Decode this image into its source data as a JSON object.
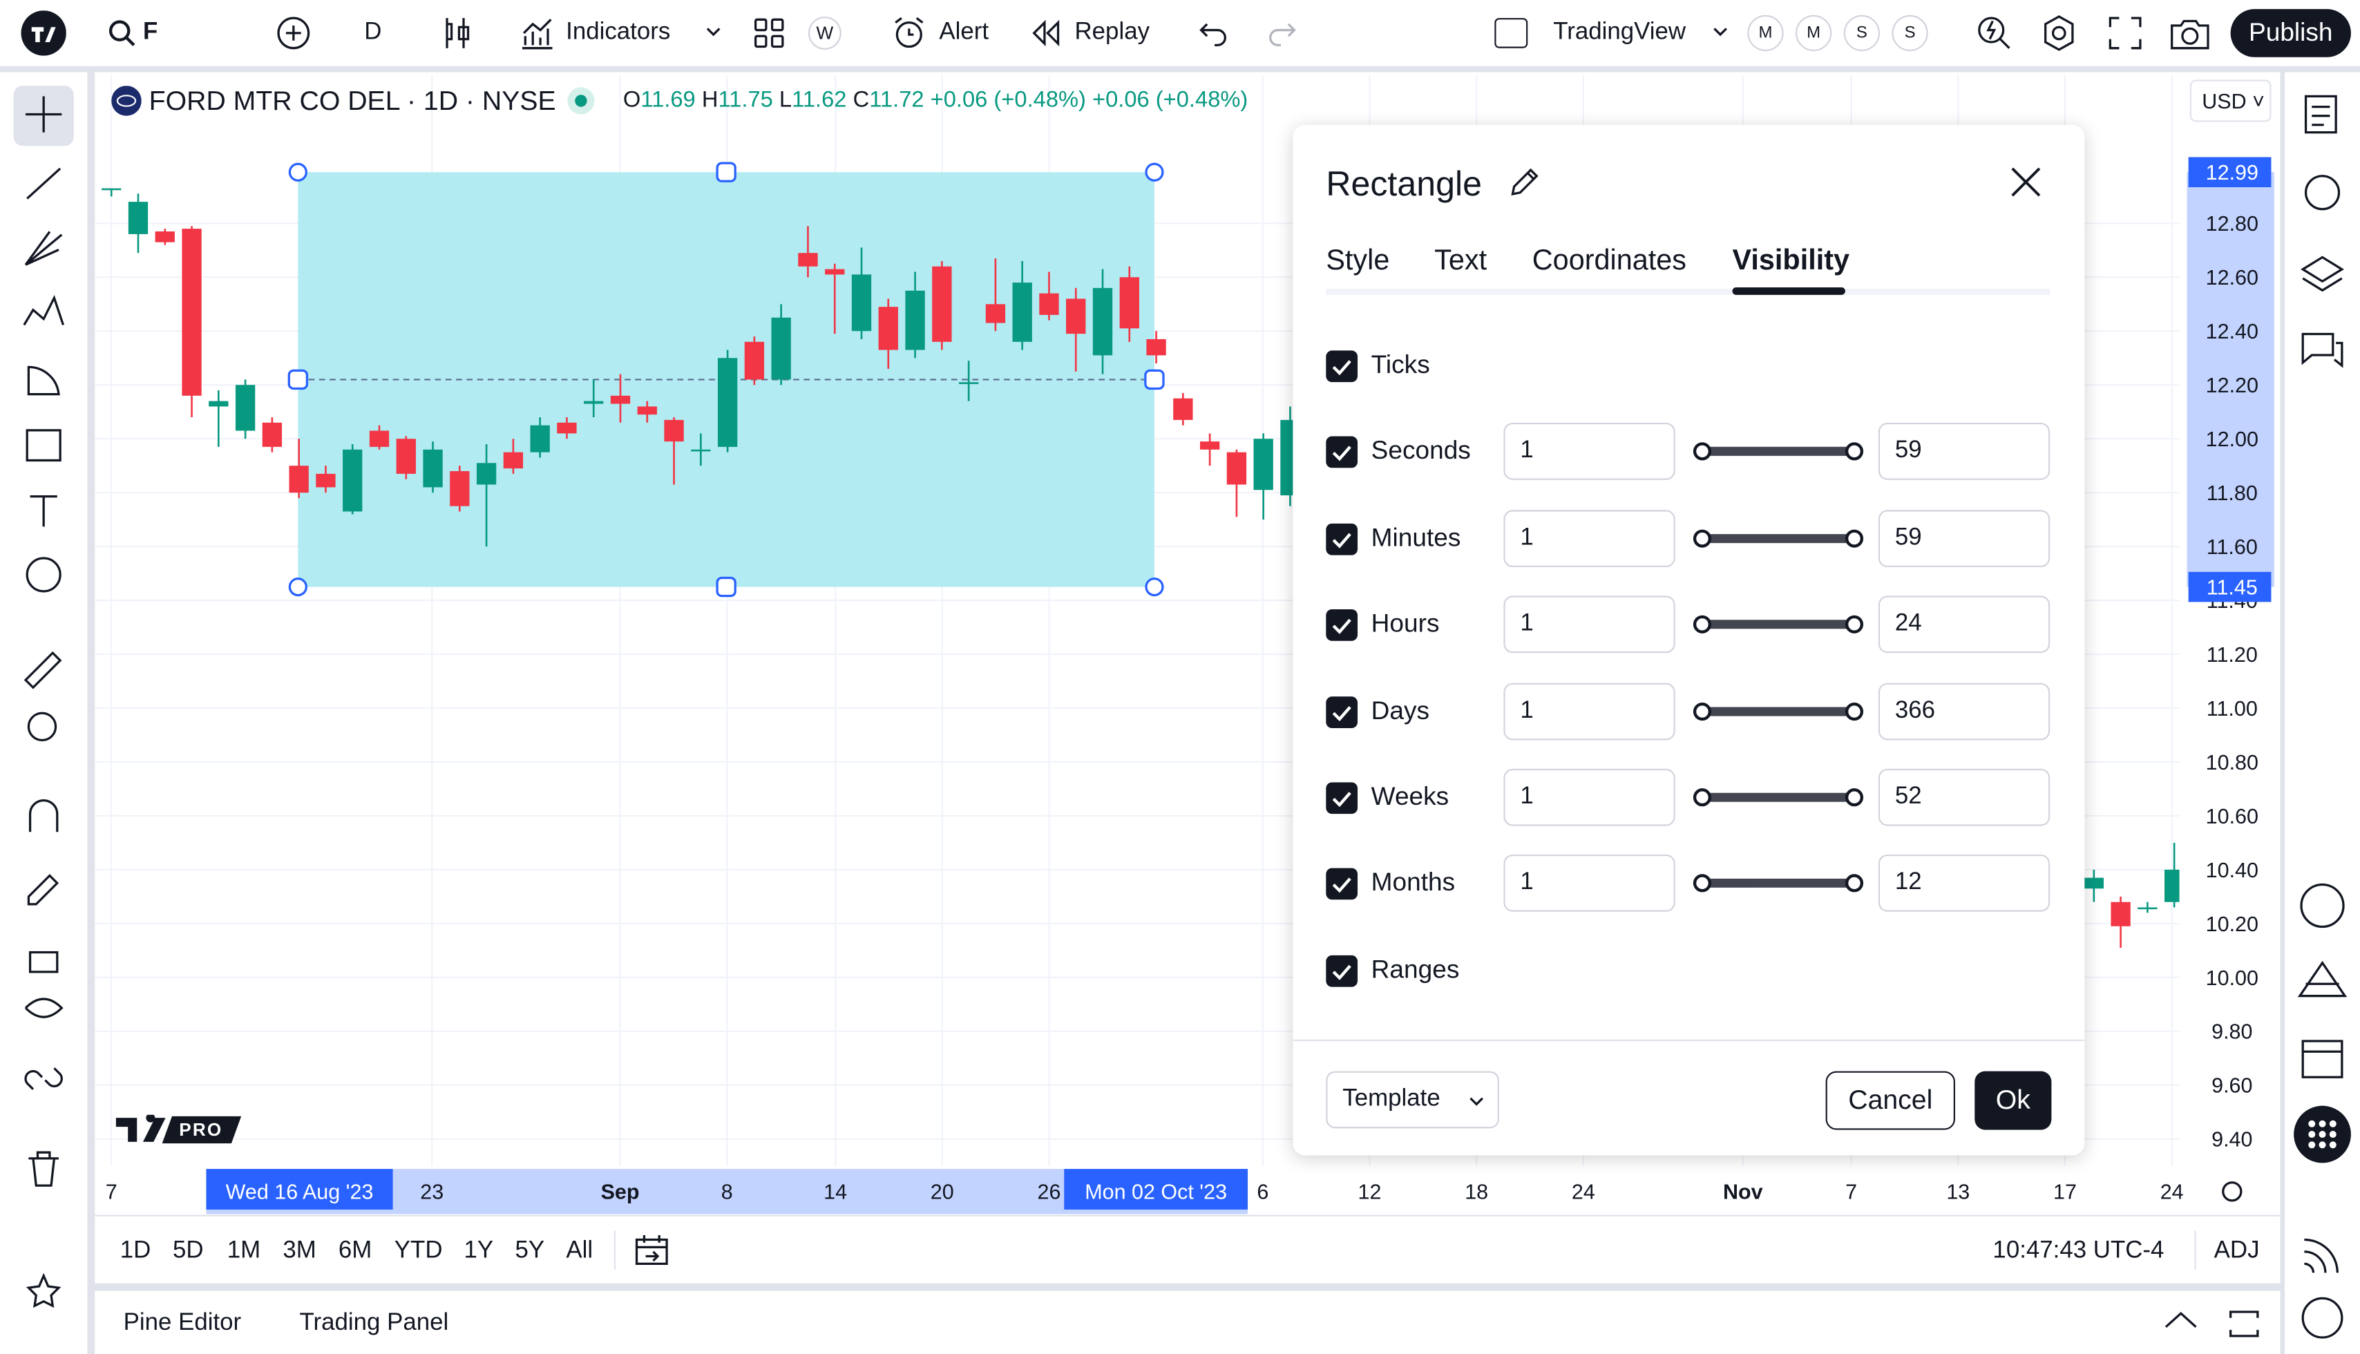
{
  "top_bar": {
    "symbol": "F",
    "interval": "D",
    "indicators": "Indicators",
    "compare": "W",
    "alert": "Alert",
    "replay": "Replay",
    "layout": "TradingView",
    "badges": [
      "M",
      "M",
      "S",
      "S"
    ],
    "publish": "Publish"
  },
  "legend": {
    "name": "FORD MTR CO DEL · 1D · NYSE",
    "o_label": "O",
    "o": "11.69",
    "h_label": "H",
    "h": "11.75",
    "l_label": "L",
    "l": "11.62",
    "c_label": "C",
    "c": "11.72",
    "change": "+0.06 (+0.48%)",
    "change_2": "+0.06 (+0.48%)"
  },
  "currency": "USD",
  "logo": "PRO",
  "chart_data": {
    "type": "candlestick",
    "candles": [
      {
        "o": 12.93,
        "h": 12.93,
        "l": 12.9,
        "c": 12.93
      },
      {
        "o": 12.76,
        "h": 12.91,
        "l": 12.69,
        "c": 12.88
      },
      {
        "o": 12.77,
        "h": 12.78,
        "l": 12.72,
        "c": 12.73
      },
      {
        "o": 12.78,
        "h": 12.79,
        "l": 12.08,
        "c": 12.16
      },
      {
        "o": 12.12,
        "h": 12.18,
        "l": 11.97,
        "c": 12.14
      },
      {
        "o": 12.03,
        "h": 12.22,
        "l": 12.0,
        "c": 12.2
      },
      {
        "o": 12.06,
        "h": 12.08,
        "l": 11.95,
        "c": 11.97
      },
      {
        "o": 11.9,
        "h": 12.0,
        "l": 11.78,
        "c": 11.8
      },
      {
        "o": 11.87,
        "h": 11.9,
        "l": 11.8,
        "c": 11.82
      },
      {
        "o": 11.73,
        "h": 11.98,
        "l": 11.72,
        "c": 11.96
      },
      {
        "o": 12.03,
        "h": 12.05,
        "l": 11.96,
        "c": 11.97
      },
      {
        "o": 12.0,
        "h": 12.01,
        "l": 11.85,
        "c": 11.87
      },
      {
        "o": 11.82,
        "h": 11.99,
        "l": 11.8,
        "c": 11.96
      },
      {
        "o": 11.88,
        "h": 11.9,
        "l": 11.73,
        "c": 11.75
      },
      {
        "o": 11.83,
        "h": 11.98,
        "l": 11.6,
        "c": 11.91
      },
      {
        "o": 11.95,
        "h": 12.0,
        "l": 11.87,
        "c": 11.89
      },
      {
        "o": 11.95,
        "h": 12.08,
        "l": 11.93,
        "c": 12.05
      },
      {
        "o": 12.06,
        "h": 12.08,
        "l": 12.0,
        "c": 12.02
      },
      {
        "o": 12.13,
        "h": 12.22,
        "l": 12.08,
        "c": 12.14
      },
      {
        "o": 12.16,
        "h": 12.24,
        "l": 12.06,
        "c": 12.13
      },
      {
        "o": 12.12,
        "h": 12.14,
        "l": 12.06,
        "c": 12.09
      },
      {
        "o": 12.07,
        "h": 12.08,
        "l": 11.83,
        "c": 11.99
      },
      {
        "o": 11.96,
        "h": 12.02,
        "l": 11.9,
        "c": 11.96
      },
      {
        "o": 11.97,
        "h": 12.33,
        "l": 11.95,
        "c": 12.3
      },
      {
        "o": 12.36,
        "h": 12.38,
        "l": 12.2,
        "c": 12.22
      },
      {
        "o": 12.22,
        "h": 12.5,
        "l": 12.2,
        "c": 12.45
      },
      {
        "o": 12.69,
        "h": 12.79,
        "l": 12.6,
        "c": 12.64
      },
      {
        "o": 12.63,
        "h": 12.65,
        "l": 12.39,
        "c": 12.61
      },
      {
        "o": 12.4,
        "h": 12.71,
        "l": 12.37,
        "c": 12.61
      },
      {
        "o": 12.49,
        "h": 12.52,
        "l": 12.26,
        "c": 12.33
      },
      {
        "o": 12.33,
        "h": 12.62,
        "l": 12.3,
        "c": 12.55
      },
      {
        "o": 12.64,
        "h": 12.66,
        "l": 12.33,
        "c": 12.36
      },
      {
        "o": 12.21,
        "h": 12.29,
        "l": 12.14,
        "c": 12.21
      },
      {
        "o": 12.5,
        "h": 12.67,
        "l": 12.4,
        "c": 12.43
      },
      {
        "o": 12.36,
        "h": 12.66,
        "l": 12.33,
        "c": 12.58
      },
      {
        "o": 12.54,
        "h": 12.62,
        "l": 12.44,
        "c": 12.46
      },
      {
        "o": 12.52,
        "h": 12.56,
        "l": 12.25,
        "c": 12.39
      },
      {
        "o": 12.31,
        "h": 12.63,
        "l": 12.24,
        "c": 12.56
      },
      {
        "o": 12.6,
        "h": 12.64,
        "l": 12.36,
        "c": 12.41
      },
      {
        "o": 12.37,
        "h": 12.4,
        "l": 12.28,
        "c": 12.31
      },
      {
        "o": 12.15,
        "h": 12.17,
        "l": 12.05,
        "c": 12.07
      },
      {
        "o": 11.99,
        "h": 12.02,
        "l": 11.9,
        "c": 11.96
      },
      {
        "o": 11.95,
        "h": 11.96,
        "l": 11.71,
        "c": 11.83
      },
      {
        "o": 11.81,
        "h": 12.02,
        "l": 11.7,
        "c": 12.0
      },
      {
        "o": 11.79,
        "h": 12.12,
        "l": 11.75,
        "c": 12.07
      },
      null,
      null,
      null,
      null,
      null,
      null,
      null,
      null,
      null,
      null,
      null,
      null,
      null,
      null,
      null,
      null,
      null,
      null,
      null,
      null,
      null,
      null,
      null,
      null,
      null,
      null,
      null,
      null,
      null,
      {
        "o": 10.33,
        "h": 10.4,
        "l": 10.28,
        "c": 10.37
      },
      {
        "o": 10.28,
        "h": 10.3,
        "l": 10.11,
        "c": 10.19
      },
      {
        "o": 10.26,
        "h": 10.28,
        "l": 10.24,
        "c": 10.26
      },
      {
        "o": 10.28,
        "h": 10.5,
        "l": 10.26,
        "c": 10.4
      }
    ],
    "ylim": [
      9.3,
      13.35
    ],
    "yticks": [
      {
        "value": 12.8,
        "label": "12.80"
      },
      {
        "value": 12.6,
        "label": "12.60"
      },
      {
        "value": 12.4,
        "label": "12.40"
      },
      {
        "value": 12.2,
        "label": "12.20"
      },
      {
        "value": 12,
        "label": "12.00"
      },
      {
        "value": 11.8,
        "label": "11.80"
      },
      {
        "value": 11.6,
        "label": "11.60"
      },
      {
        "value": 11.4,
        "label": "11.40"
      },
      {
        "value": 11.2,
        "label": "11.20"
      },
      {
        "value": 11,
        "label": "11.00"
      },
      {
        "value": 10.8,
        "label": "10.80"
      },
      {
        "value": 10.6,
        "label": "10.60"
      },
      {
        "value": 10.4,
        "label": "10.40"
      },
      {
        "value": 10.2,
        "label": "10.20"
      },
      {
        "value": 10,
        "label": "10.00"
      },
      {
        "value": 9.8,
        "label": "9.80"
      },
      {
        "value": 9.6,
        "label": "9.60"
      },
      {
        "value": 9.4,
        "label": "9.40"
      }
    ],
    "xticks": [
      "7",
      "23",
      "Sep",
      "8",
      "14",
      "20",
      "26",
      "6",
      "12",
      "18",
      "24",
      "Nov",
      "7",
      "13",
      "17",
      "24"
    ],
    "rectangle": {
      "top": {
        "value": 12.99,
        "label": "12.99"
      },
      "bottom": {
        "value": 11.45,
        "label": "11.45"
      },
      "start": "Wed 16 Aug '23",
      "end": "Mon 02 Oct '23"
    },
    "grid": true,
    "up_color": "#089981",
    "down_color": "#f23645",
    "rect_color": "#b2ebf2"
  },
  "ranges": [
    "1D",
    "5D",
    "1M",
    "3M",
    "6M",
    "YTD",
    "1Y",
    "5Y",
    "All"
  ],
  "clock": "10:47:43 UTC-4",
  "adj": "ADJ",
  "bottom_tabs": [
    "Pine Editor",
    "Trading Panel"
  ],
  "dialog": {
    "title": "Rectangle",
    "tabs": [
      "Style",
      "Text",
      "Coordinates",
      "Visibility"
    ],
    "rows": [
      {
        "label": "Ticks"
      },
      {
        "label": "Seconds",
        "from": "1",
        "to": "59"
      },
      {
        "label": "Minutes",
        "from": "1",
        "to": "59"
      },
      {
        "label": "Hours",
        "from": "1",
        "to": "24"
      },
      {
        "label": "Days",
        "from": "1",
        "to": "366"
      },
      {
        "label": "Weeks",
        "from": "1",
        "to": "52"
      },
      {
        "label": "Months",
        "from": "1",
        "to": "12"
      },
      {
        "label": "Ranges"
      }
    ],
    "template": "Template",
    "cancel": "Cancel",
    "ok": "Ok"
  }
}
